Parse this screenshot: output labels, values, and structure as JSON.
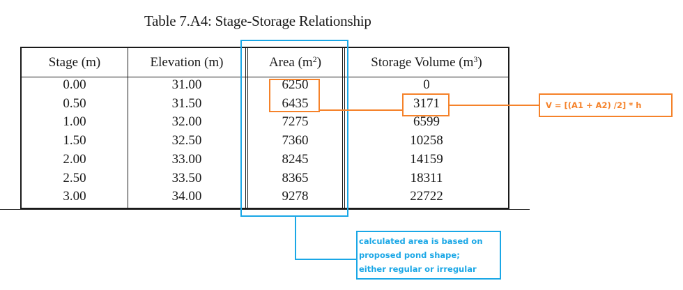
{
  "title": "Table 7.A4:  Stage-Storage Relationship",
  "table": {
    "headers": [
      {
        "label": "Stage (m)",
        "sup": ""
      },
      {
        "label": "Elevation (m)",
        "sup": ""
      },
      {
        "label": "Area (m",
        "sup": "2",
        "close": ")"
      },
      {
        "label": "Storage Volume (m",
        "sup": "3",
        "close": ")"
      }
    ],
    "rows": [
      [
        "0.00",
        "31.00",
        "6250",
        "0"
      ],
      [
        "0.50",
        "31.50",
        "6435",
        "3171"
      ],
      [
        "1.00",
        "32.00",
        "7275",
        "6599"
      ],
      [
        "1.50",
        "32.50",
        "7360",
        "10258"
      ],
      [
        "2.00",
        "33.00",
        "8245",
        "14159"
      ],
      [
        "2.50",
        "33.50",
        "8365",
        "18311"
      ],
      [
        "3.00",
        "34.00",
        "9278",
        "22722"
      ]
    ]
  },
  "annotations": {
    "formula": "V = [(A1 + A2) /2] * h",
    "area_note": [
      "calculated area is based on",
      "proposed pond shape;",
      "either regular or irregular"
    ],
    "colors": {
      "orange": "#f5822a",
      "blue": "#1aa7e6"
    }
  }
}
